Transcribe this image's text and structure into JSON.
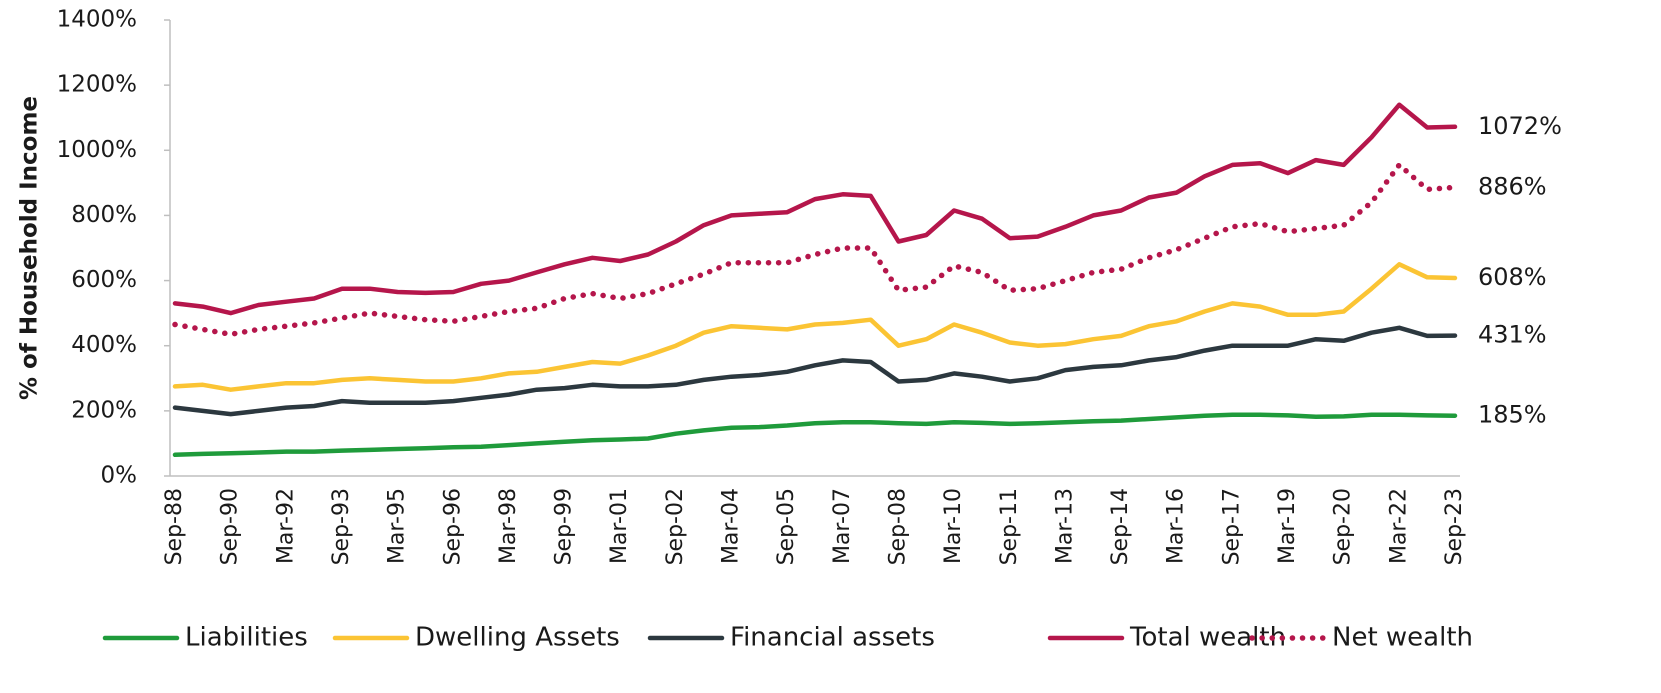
{
  "chart_data": {
    "type": "line",
    "ylabel": "% of Household Income",
    "categories": [
      "Sep-88",
      null,
      "Sep-90",
      null,
      "Mar-92",
      null,
      "Sep-93",
      null,
      "Mar-95",
      null,
      "Sep-96",
      null,
      "Mar-98",
      null,
      "Sep-99",
      null,
      "Mar-01",
      null,
      "Sep-02",
      null,
      "Mar-04",
      null,
      "Sep-05",
      null,
      "Mar-07",
      null,
      "Sep-08",
      null,
      "Mar-10",
      null,
      "Sep-11",
      null,
      "Mar-13",
      null,
      "Sep-14",
      null,
      "Mar-16",
      null,
      "Sep-17",
      null,
      "Mar-19",
      null,
      "Sep-20",
      null,
      "Mar-22",
      null,
      "Sep-23"
    ],
    "ylim": [
      0,
      1400
    ],
    "yticks": [
      {
        "value": 0,
        "label": "0%"
      },
      {
        "value": 200,
        "label": "200%"
      },
      {
        "value": 400,
        "label": "400%"
      },
      {
        "value": 600,
        "label": "600%"
      },
      {
        "value": 800,
        "label": "800%"
      },
      {
        "value": 1000,
        "label": "1000%"
      },
      {
        "value": 1200,
        "label": "1200%"
      },
      {
        "value": 1400,
        "label": "1400%"
      }
    ],
    "grid": false,
    "legend": "bottom",
    "series": [
      {
        "name": "Liabilities",
        "color": "#1f9b3b",
        "dash": "solid",
        "values": [
          65,
          68,
          70,
          72,
          75,
          75,
          78,
          80,
          83,
          85,
          88,
          90,
          95,
          100,
          105,
          110,
          112,
          115,
          130,
          140,
          148,
          150,
          155,
          162,
          165,
          165,
          162,
          160,
          165,
          163,
          160,
          162,
          165,
          168,
          170,
          175,
          180,
          185,
          188,
          188,
          186,
          182,
          183,
          188,
          188,
          186,
          185
        ],
        "value_labels": [
          null,
          null,
          null,
          null,
          null,
          null,
          null,
          null,
          null,
          null,
          null,
          null,
          null,
          null,
          null,
          null,
          null,
          null,
          null,
          null,
          null,
          null,
          null,
          null,
          null,
          null,
          null,
          null,
          null,
          null,
          null,
          null,
          null,
          null,
          null,
          null,
          null,
          null,
          null,
          null,
          null,
          null,
          null,
          null,
          null,
          null,
          "185%"
        ]
      },
      {
        "name": "Dwelling Assets",
        "color": "#fbc434",
        "dash": "solid",
        "values": [
          275,
          280,
          265,
          275,
          285,
          285,
          295,
          300,
          295,
          290,
          290,
          300,
          315,
          320,
          335,
          350,
          345,
          370,
          400,
          440,
          460,
          455,
          450,
          465,
          470,
          480,
          400,
          420,
          465,
          440,
          410,
          400,
          405,
          420,
          430,
          460,
          475,
          505,
          530,
          520,
          495,
          495,
          505,
          575,
          650,
          610,
          608
        ],
        "value_labels": [
          null,
          null,
          null,
          null,
          null,
          null,
          null,
          null,
          null,
          null,
          null,
          null,
          null,
          null,
          null,
          null,
          null,
          null,
          null,
          null,
          null,
          null,
          null,
          null,
          null,
          null,
          null,
          null,
          null,
          null,
          null,
          null,
          null,
          null,
          null,
          null,
          null,
          null,
          null,
          null,
          null,
          null,
          null,
          null,
          null,
          null,
          "608%"
        ]
      },
      {
        "name": "Financial assets",
        "color": "#2c383f",
        "dash": "solid",
        "values": [
          210,
          200,
          190,
          200,
          210,
          215,
          230,
          225,
          225,
          225,
          230,
          240,
          250,
          265,
          270,
          280,
          275,
          275,
          280,
          295,
          305,
          310,
          320,
          340,
          355,
          350,
          290,
          295,
          315,
          305,
          290,
          300,
          325,
          335,
          340,
          355,
          365,
          385,
          400,
          400,
          400,
          420,
          415,
          440,
          455,
          430,
          431
        ],
        "value_labels": [
          null,
          null,
          null,
          null,
          null,
          null,
          null,
          null,
          null,
          null,
          null,
          null,
          null,
          null,
          null,
          null,
          null,
          null,
          null,
          null,
          null,
          null,
          null,
          null,
          null,
          null,
          null,
          null,
          null,
          null,
          null,
          null,
          null,
          null,
          null,
          null,
          null,
          null,
          null,
          null,
          null,
          null,
          null,
          null,
          null,
          null,
          "431%"
        ]
      },
      {
        "name": "Total wealth",
        "color": "#b5164b",
        "dash": "solid",
        "values": [
          530,
          520,
          500,
          525,
          535,
          545,
          575,
          575,
          565,
          562,
          565,
          590,
          600,
          625,
          650,
          670,
          660,
          680,
          720,
          770,
          800,
          805,
          810,
          850,
          865,
          860,
          720,
          740,
          815,
          790,
          730,
          735,
          765,
          800,
          815,
          855,
          870,
          920,
          955,
          960,
          930,
          970,
          955,
          1040,
          1140,
          1070,
          1072
        ],
        "value_labels": [
          null,
          null,
          null,
          null,
          null,
          null,
          null,
          null,
          null,
          null,
          null,
          null,
          null,
          null,
          null,
          null,
          null,
          null,
          null,
          null,
          null,
          null,
          null,
          null,
          null,
          null,
          null,
          null,
          null,
          null,
          null,
          null,
          null,
          null,
          null,
          null,
          null,
          null,
          null,
          null,
          null,
          null,
          null,
          null,
          null,
          null,
          "1072%"
        ]
      },
      {
        "name": "Net wealth",
        "color": "#b5164b",
        "dash": "dotted",
        "values": [
          465,
          450,
          435,
          450,
          460,
          470,
          485,
          500,
          490,
          480,
          475,
          490,
          505,
          515,
          545,
          560,
          545,
          560,
          590,
          620,
          655,
          655,
          655,
          680,
          700,
          700,
          570,
          580,
          645,
          625,
          570,
          575,
          600,
          625,
          635,
          670,
          695,
          730,
          765,
          775,
          750,
          760,
          770,
          840,
          955,
          880,
          886
        ],
        "value_labels": [
          null,
          null,
          null,
          null,
          null,
          null,
          null,
          null,
          null,
          null,
          null,
          null,
          null,
          null,
          null,
          null,
          null,
          null,
          null,
          null,
          null,
          null,
          null,
          null,
          null,
          null,
          null,
          null,
          null,
          null,
          null,
          null,
          null,
          null,
          null,
          null,
          null,
          null,
          null,
          null,
          null,
          null,
          null,
          null,
          null,
          null,
          "886%"
        ]
      }
    ]
  }
}
